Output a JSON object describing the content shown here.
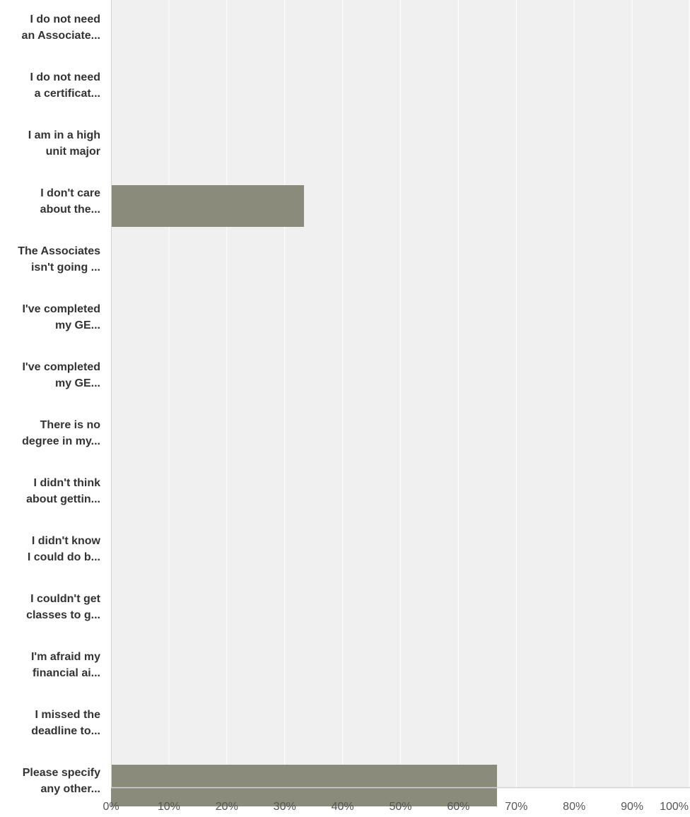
{
  "chart_data": {
    "type": "bar",
    "orientation": "horizontal",
    "categories": [
      [
        "I do not need",
        "an Associate..."
      ],
      [
        "I do not need",
        "a certificat..."
      ],
      [
        "I am in a high",
        "unit major"
      ],
      [
        "I don't care",
        "about the..."
      ],
      [
        "The Associates",
        "isn't going ..."
      ],
      [
        "I've completed",
        "my GE..."
      ],
      [
        "I've completed",
        "my GE..."
      ],
      [
        "There is no",
        "degree in my..."
      ],
      [
        "I didn't think",
        "about gettin..."
      ],
      [
        "I didn't know",
        "I could do b..."
      ],
      [
        "I couldn't get",
        "classes to g..."
      ],
      [
        "I'm afraid my",
        "financial ai..."
      ],
      [
        "I missed the",
        "deadline to..."
      ],
      [
        "Please specify",
        "any other..."
      ]
    ],
    "values": [
      0,
      0,
      0,
      33.33,
      0,
      0,
      0,
      0,
      0,
      0,
      0,
      0,
      0,
      66.67
    ],
    "xlim": [
      0,
      100
    ],
    "xticks": [
      0,
      10,
      20,
      30,
      40,
      50,
      60,
      70,
      80,
      90,
      100
    ],
    "tick_labels": [
      "0%",
      "10%",
      "20%",
      "30%",
      "40%",
      "50%",
      "60%",
      "70%",
      "80%",
      "90%",
      "100%"
    ],
    "title": "",
    "xlabel": "",
    "ylabel": "",
    "grid": true,
    "legend": "none",
    "colors": {
      "bar": "#8a8b7a",
      "plot_background": "#f0f0f0",
      "grid": "#ffffff",
      "axis": "#d4d4d4"
    }
  }
}
